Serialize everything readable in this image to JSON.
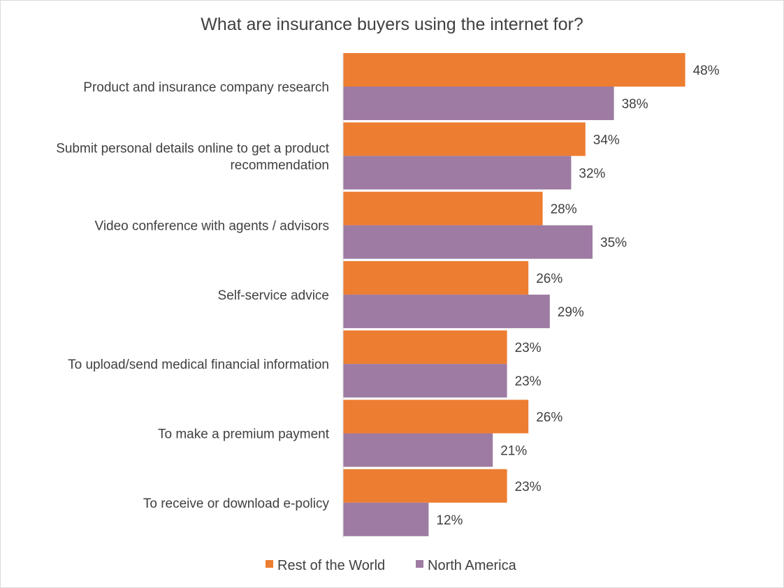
{
  "chart_data": {
    "type": "bar",
    "orientation": "horizontal",
    "title": "What are insurance buyers using the internet for?",
    "xlabel": "",
    "ylabel": "",
    "xlim": [
      0,
      60
    ],
    "grid": false,
    "legend_position": "bottom",
    "categories": [
      [
        "Product and insurance company research"
      ],
      [
        "Submit personal details online to get a product",
        "recommendation"
      ],
      [
        "Video conference with agents / advisors"
      ],
      [
        "Self-service advice"
      ],
      [
        "To upload/send medical financial information"
      ],
      [
        "To make a premium payment"
      ],
      [
        "To receive or download e-policy"
      ]
    ],
    "series": [
      {
        "name": "Rest of the World",
        "color": "#ED7D31",
        "values": [
          48,
          34,
          28,
          26,
          23,
          26,
          23
        ],
        "labels": [
          "48%",
          "34%",
          "28%",
          "26%",
          "23%",
          "26%",
          "23%"
        ]
      },
      {
        "name": "North America",
        "color": "#9E7BA3",
        "values": [
          38,
          32,
          35,
          29,
          23,
          21,
          12
        ],
        "labels": [
          "38%",
          "32%",
          "35%",
          "29%",
          "23%",
          "21%",
          "12%"
        ]
      }
    ]
  }
}
